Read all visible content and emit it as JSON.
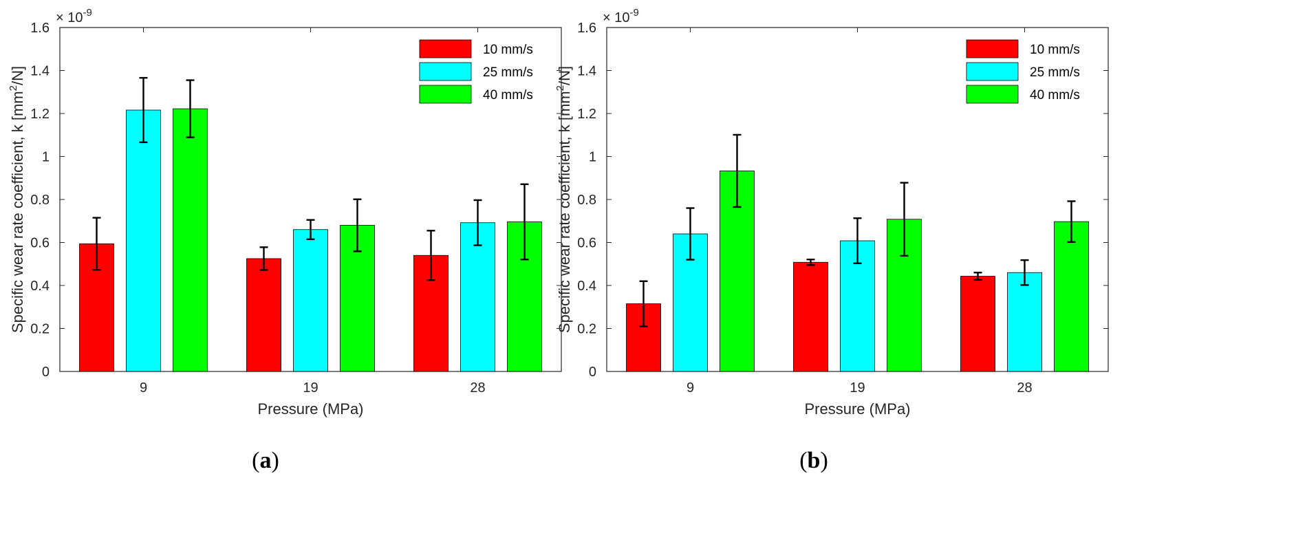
{
  "chart_data": [
    {
      "type": "bar",
      "panel_label": "a",
      "xlabel": "Pressure (MPa)",
      "ylabel_main": "Specific wear rate coefficient, k [mm",
      "ylabel_sup": "2",
      "ylabel_end": "/N]",
      "exponent_base": "× 10",
      "exponent_sup": "-9",
      "categories": [
        "9",
        "19",
        "28"
      ],
      "ylim": [
        0,
        1.6
      ],
      "yticks": [
        "0",
        "0.2",
        "0.4",
        "0.6",
        "0.8",
        "1",
        "1.2",
        "1.4",
        "1.6"
      ],
      "legend_position": "top-right",
      "series": [
        {
          "name": "10 mm/s",
          "color": "#ff0000",
          "values": [
            0.594,
            0.525,
            0.54
          ],
          "errors": [
            0.121,
            0.053,
            0.115
          ]
        },
        {
          "name": "25 mm/s",
          "color": "#00ffff",
          "values": [
            1.216,
            0.66,
            0.692
          ],
          "errors": [
            0.15,
            0.045,
            0.105
          ]
        },
        {
          "name": "40 mm/s",
          "color": "#00ff00",
          "values": [
            1.222,
            0.68,
            0.696
          ],
          "errors": [
            0.133,
            0.121,
            0.175
          ]
        }
      ]
    },
    {
      "type": "bar",
      "panel_label": "b",
      "xlabel": "Pressure (MPa)",
      "ylabel_main": "Specific wear rate coefficient, k [mm",
      "ylabel_sup": "2",
      "ylabel_end": "/N]",
      "exponent_base": "× 10",
      "exponent_sup": "-9",
      "categories": [
        "9",
        "19",
        "28"
      ],
      "ylim": [
        0,
        1.6
      ],
      "yticks": [
        "0",
        "0.2",
        "0.4",
        "0.6",
        "0.8",
        "1",
        "1.2",
        "1.4",
        "1.6"
      ],
      "legend_position": "top-right",
      "series": [
        {
          "name": "10 mm/s",
          "color": "#ff0000",
          "values": [
            0.315,
            0.508,
            0.443
          ],
          "errors": [
            0.105,
            0.013,
            0.017
          ]
        },
        {
          "name": "25 mm/s",
          "color": "#00ffff",
          "values": [
            0.64,
            0.608,
            0.46
          ],
          "errors": [
            0.12,
            0.105,
            0.058
          ]
        },
        {
          "name": "40 mm/s",
          "color": "#00ff00",
          "values": [
            0.933,
            0.708,
            0.697
          ],
          "errors": [
            0.168,
            0.17,
            0.095
          ]
        }
      ]
    }
  ]
}
